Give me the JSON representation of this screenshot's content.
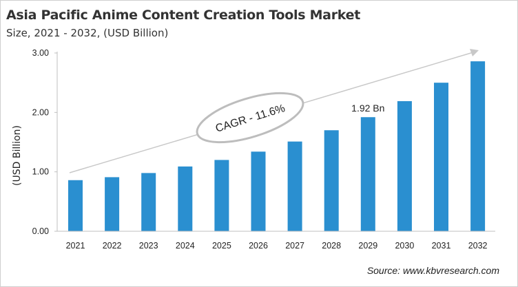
{
  "chart_data": {
    "type": "bar",
    "title": "Asia Pacific Anime Content Creation Tools Market",
    "subtitle": "Size, 2021 - 2032, (USD Billion)",
    "ylabel": "(USD Billion)",
    "xlabel": "",
    "categories": [
      "2021",
      "2022",
      "2023",
      "2024",
      "2025",
      "2026",
      "2027",
      "2028",
      "2029",
      "2030",
      "2031",
      "2032"
    ],
    "values": [
      0.86,
      0.91,
      0.98,
      1.09,
      1.2,
      1.34,
      1.51,
      1.7,
      1.92,
      2.19,
      2.5,
      2.86
    ],
    "ylim": [
      0,
      3
    ],
    "yticks": [
      "0.00",
      "1.00",
      "2.00",
      "3.00"
    ],
    "grid": false,
    "bar_color": "#2a8fd0",
    "annotations": {
      "cagr": "CAGR - 11.6%",
      "highlight_label": "1.92 Bn",
      "highlight_index": 8
    }
  },
  "source": "Source: www.kbvresearch.com"
}
